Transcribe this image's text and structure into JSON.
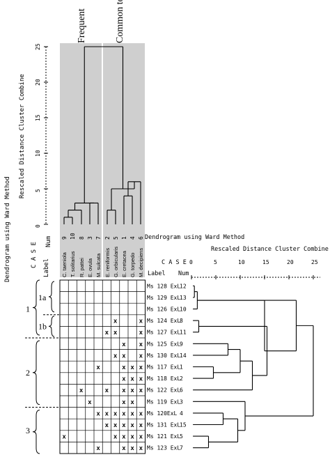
{
  "outer_title": "Dendrogram using Ward Method",
  "top_dendrogram": {
    "axis_title": "Rescaled Distance Cluster Combine",
    "ticks": [
      "0",
      "5",
      "10",
      "15",
      "20",
      "25"
    ],
    "num_label": "Num",
    "group_labels": [
      "Frequent",
      "Common to abundant"
    ],
    "species": [
      {
        "name": "C. taeniola",
        "num": "9"
      },
      {
        "name": "T. solitarius",
        "num": "10"
      },
      {
        "name": "R. pattei",
        "num": "8"
      },
      {
        "name": "E. ovula",
        "num": "3"
      },
      {
        "name": "M. sulcata",
        "num": "7"
      },
      {
        "name": "E. reniformis",
        "num": "2"
      },
      {
        "name": "G. orbicularis",
        "num": "5"
      },
      {
        "name": "E. cretacea",
        "num": "1"
      },
      {
        "name": "G. torpedo",
        "num": "4"
      },
      {
        "name": "M. decipiens",
        "num": "6"
      }
    ],
    "label_header": "Label",
    "case_header": "C A S E"
  },
  "case_dendrogram": {
    "title": "Dendrogram using Ward Method",
    "axis_title": "Rescaled Distance Cluster Combine",
    "case_header": "C A S E",
    "label_header": "Label",
    "num_header": "Num",
    "ticks": [
      "0",
      "5",
      "10",
      "15",
      "20",
      "25"
    ],
    "rows": [
      {
        "label": "Ms 128 ExL",
        "num": "12"
      },
      {
        "label": "Ms 129 ExL",
        "num": "13"
      },
      {
        "label": "Ms 126 ExL",
        "num": "10"
      },
      {
        "label": "Ms 124 ExL",
        "num": "8"
      },
      {
        "label": "Ms 127 ExL",
        "num": "11"
      },
      {
        "label": "Ms 125 ExL",
        "num": "9"
      },
      {
        "label": "Ms 130 ExL",
        "num": "14"
      },
      {
        "label": "Ms 117 ExL",
        "num": "1"
      },
      {
        "label": "Ms 118 ExL",
        "num": "2"
      },
      {
        "label": "Ms 122 ExL",
        "num": "6"
      },
      {
        "label": "Ms 119 ExL",
        "num": "3"
      },
      {
        "label": "Ms 120ExL",
        "num": "4"
      },
      {
        "label": "Ms 131 ExL",
        "num": "15"
      },
      {
        "label": "Ms 121 ExL",
        "num": "5"
      },
      {
        "label": "Ms 123 ExL",
        "num": "7"
      }
    ],
    "groups": [
      "1",
      "1a",
      "1b",
      "2",
      "3"
    ]
  },
  "matrix_mark": "x",
  "chart_data": [
    {
      "type": "dendrogram",
      "orientation": "vertical",
      "title": "",
      "ylabel": "Rescaled Distance Cluster Combine",
      "ylim": [
        0,
        25
      ],
      "leaves": [
        "C. taeniola",
        "T. solitarius",
        "R. pattei",
        "E. ovula",
        "M. sulcata",
        "E. reniformis",
        "G. orbicularis",
        "E. cretacea",
        "G. torpedo",
        "M. decipiens"
      ],
      "merges": [
        {
          "a": [
            0,
            1
          ],
          "h": 1
        },
        {
          "a": [
            0,
            2
          ],
          "h": 2
        },
        {
          "a": [
            3,
            4
          ],
          "h": 3
        },
        {
          "a": [
            0,
            4
          ],
          "h": 3
        },
        {
          "a": [
            5,
            6
          ],
          "h": 2
        },
        {
          "a": [
            7,
            8
          ],
          "h": 4
        },
        {
          "a": [
            7,
            9
          ],
          "h": 6
        },
        {
          "a": [
            5,
            9
          ],
          "h": 5
        },
        {
          "a": [
            0,
            9
          ],
          "h": 25
        }
      ],
      "groups": [
        "Frequent",
        "Common to abundant"
      ]
    },
    {
      "type": "dendrogram",
      "orientation": "horizontal",
      "title": "Dendrogram using Ward Method",
      "xlabel": "Rescaled Distance Cluster Combine",
      "xlim": [
        0,
        25
      ],
      "leaves": [
        "12",
        "13",
        "10",
        "8",
        "11",
        "9",
        "14",
        "1",
        "2",
        "6",
        "3",
        "4",
        "15",
        "5",
        "7"
      ],
      "merges_description": "case merges read from horizontal dendrogram"
    },
    {
      "type": "table",
      "columns": [
        "C. taeniola",
        "T. solitarius",
        "R. pattei",
        "E. ovula",
        "M. sulcata",
        "E. reniformis",
        "G. orbicularis",
        "E. cretacea",
        "G. torpedo",
        "M. decipiens"
      ],
      "rows": [
        "Ms 128 ExL",
        "Ms 129 ExL",
        "Ms 126 ExL",
        "Ms 124 ExL",
        "Ms 127 ExL",
        "Ms 125 ExL",
        "Ms 130 ExL",
        "Ms 117 ExL",
        "Ms 118 ExL",
        "Ms 122 ExL",
        "Ms 119 ExL",
        "Ms 120ExL",
        "Ms 131 ExL",
        "Ms 121 ExL",
        "Ms 123 ExL"
      ],
      "marks": [
        [],
        [],
        [],
        [
          6,
          9
        ],
        [
          5,
          6,
          9
        ],
        [
          7,
          9
        ],
        [
          6,
          7,
          9
        ],
        [
          4,
          7,
          8,
          9
        ],
        [
          7,
          8,
          9
        ],
        [
          2,
          5,
          7,
          8,
          9
        ],
        [
          3,
          7,
          8
        ],
        [
          4,
          5,
          6,
          7,
          8,
          9
        ],
        [
          5,
          6,
          7,
          8,
          9
        ],
        [
          0,
          6,
          7,
          8,
          9
        ],
        [
          4,
          7,
          8,
          9
        ]
      ]
    }
  ]
}
